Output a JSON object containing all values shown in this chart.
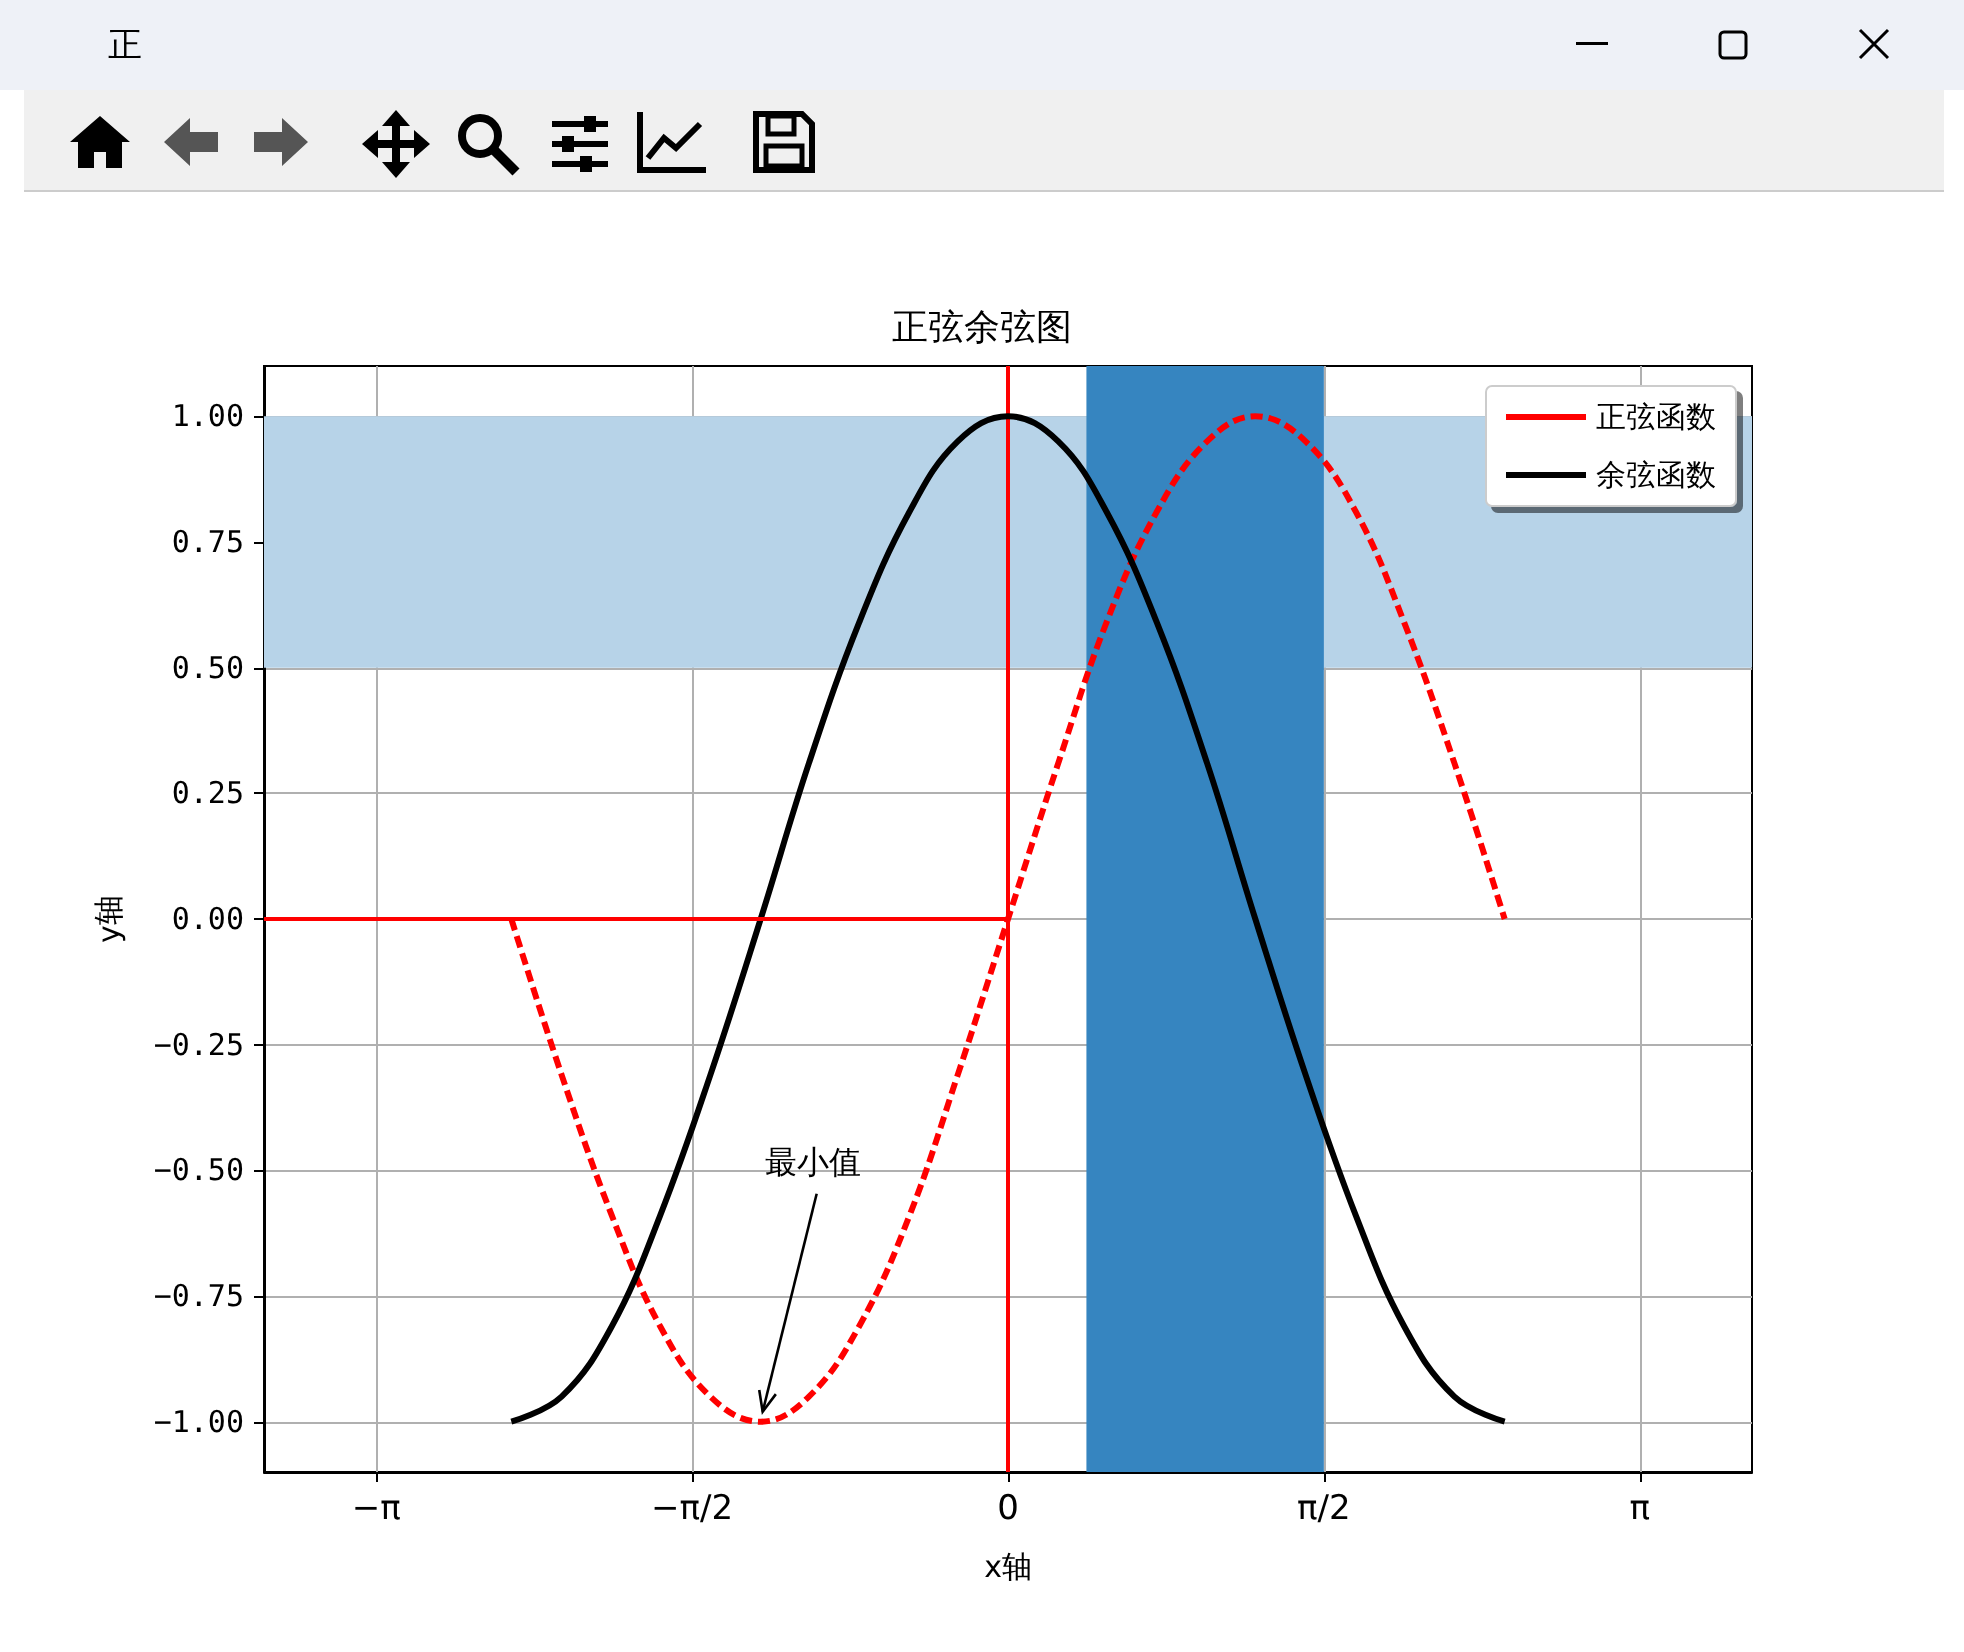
{
  "chart_data": {
    "type": "line",
    "title": "正弦余弦图",
    "xlabel": "x轴",
    "ylabel": "y轴",
    "annotations": [
      "正",
      {
        "text": "最小值",
        "x": -1.23,
        "y": -1
      }
    ],
    "xlim": [
      -3.7,
      3.7
    ],
    "ylim": [
      -1.1,
      1.1
    ],
    "xticks": [
      {
        "value": -3.1416,
        "label": "−π"
      },
      {
        "value": -1.5708,
        "label": "−π/2"
      },
      {
        "value": 0,
        "label": "0"
      },
      {
        "value": 1.5708,
        "label": "π/2"
      },
      {
        "value": 3.1416,
        "label": "π"
      }
    ],
    "yticks": [
      {
        "value": -1,
        "label": "−1.00"
      },
      {
        "value": -0.75,
        "label": "−0.75"
      },
      {
        "value": -0.5,
        "label": "−0.50"
      },
      {
        "value": -0.25,
        "label": "−0.25"
      },
      {
        "value": 0,
        "label": "0.00"
      },
      {
        "value": 0.25,
        "label": "0.25"
      },
      {
        "value": 0.5,
        "label": "0.50"
      },
      {
        "value": 0.75,
        "label": "0.75"
      },
      {
        "value": 1,
        "label": "1.00"
      }
    ],
    "grid": true,
    "legend": "top right",
    "marker": "none",
    "bands": [
      {
        "axis": "y",
        "from": 0.5,
        "to": 1,
        "color": "#b7d3e8"
      },
      {
        "axis": "x",
        "from": 0.39,
        "to": 1.5708,
        "color": "#3685c0"
      }
    ],
    "ref_lines": [
      {
        "axis": "x",
        "value": 0,
        "color": "#ff0000"
      }
    ],
    "series": [
      {
        "name": "正弦函数",
        "color": "#ff0000",
        "line_style": "dashed",
        "x": [
          -2.47,
          -2.22,
          -1.97,
          -1.73,
          -1.48,
          -1.23,
          -0.99,
          -0.74,
          -0.49,
          -0.25,
          0,
          0.25,
          0.49,
          0.74,
          0.99,
          1.23,
          1.48,
          1.73,
          1.97,
          2.22,
          2.47
        ],
        "values": [
          0,
          -0.31,
          -0.59,
          -0.81,
          -0.95,
          -1,
          -0.95,
          -0.81,
          -0.59,
          -0.31,
          0,
          0.31,
          0.59,
          0.81,
          0.95,
          1,
          0.95,
          0.81,
          0.59,
          0.31,
          0
        ]
      },
      {
        "name": "余弦函数",
        "color": "#000000",
        "line_style": "solid",
        "x": [
          -2.47,
          -2.22,
          -1.97,
          -1.73,
          -1.48,
          -1.23,
          -0.99,
          -0.74,
          -0.49,
          -0.25,
          0,
          0.25,
          0.49,
          0.74,
          0.99,
          1.23,
          1.48,
          1.73,
          1.97,
          2.22,
          2.47
        ],
        "values": [
          -1,
          -0.95,
          -0.81,
          -0.59,
          -0.31,
          0,
          0.31,
          0.59,
          0.81,
          0.95,
          1,
          0.95,
          0.81,
          0.59,
          0.31,
          0,
          -0.31,
          -0.59,
          -0.81,
          -0.95,
          -1
        ]
      },
      {
        "color": "#ff0000",
        "line_style": "solid",
        "x": [
          -3.7,
          0
        ],
        "values": [
          0,
          0
        ]
      }
    ]
  }
}
